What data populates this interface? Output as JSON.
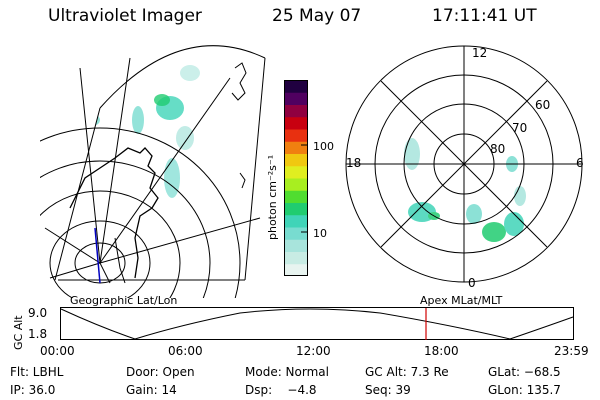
{
  "header": {
    "instrument": "Ultraviolet Imager",
    "date": "25 May 07",
    "time": "17:11:41 UT"
  },
  "colorbar": {
    "label": "photon cm⁻²s⁻¹",
    "ticks": [
      "100",
      "10"
    ],
    "colors": [
      "#e8f4f0",
      "#c8ece4",
      "#a8e4dc",
      "#78dcd0",
      "#40d4b8",
      "#20cc70",
      "#50dd30",
      "#a8ee20",
      "#e0ee20",
      "#f0c810",
      "#f08010",
      "#e83010",
      "#c80010",
      "#900040",
      "#500060",
      "#200040"
    ]
  },
  "polar_plot": {
    "mlt_labels": [
      "12",
      "18",
      "6",
      "0"
    ],
    "lat_labels": [
      "60",
      "70",
      "80"
    ]
  },
  "timeline": {
    "left_label": "Geographic Lat/Lon",
    "right_label": "Apex MLat/MLT",
    "y_axis_title": "GC Alt",
    "y_ticks": [
      "9.0",
      "1.8"
    ],
    "x_ticks": [
      "00:00",
      "06:00",
      "12:00",
      "18:00",
      "23:59"
    ],
    "marker_color": "#d00000"
  },
  "status": {
    "flt": "Flt: LBHL",
    "door": "Door: Open",
    "mode": "Mode: Normal",
    "gcalt": "GC Alt: 7.3 Re",
    "glat": "GLat: −68.5",
    "ip": "IP: 36.0",
    "gain": "Gain: 14",
    "dsp": "Dsp:    −4.8",
    "seq": "Seq: 39",
    "glon": "GLon: 135.7"
  }
}
